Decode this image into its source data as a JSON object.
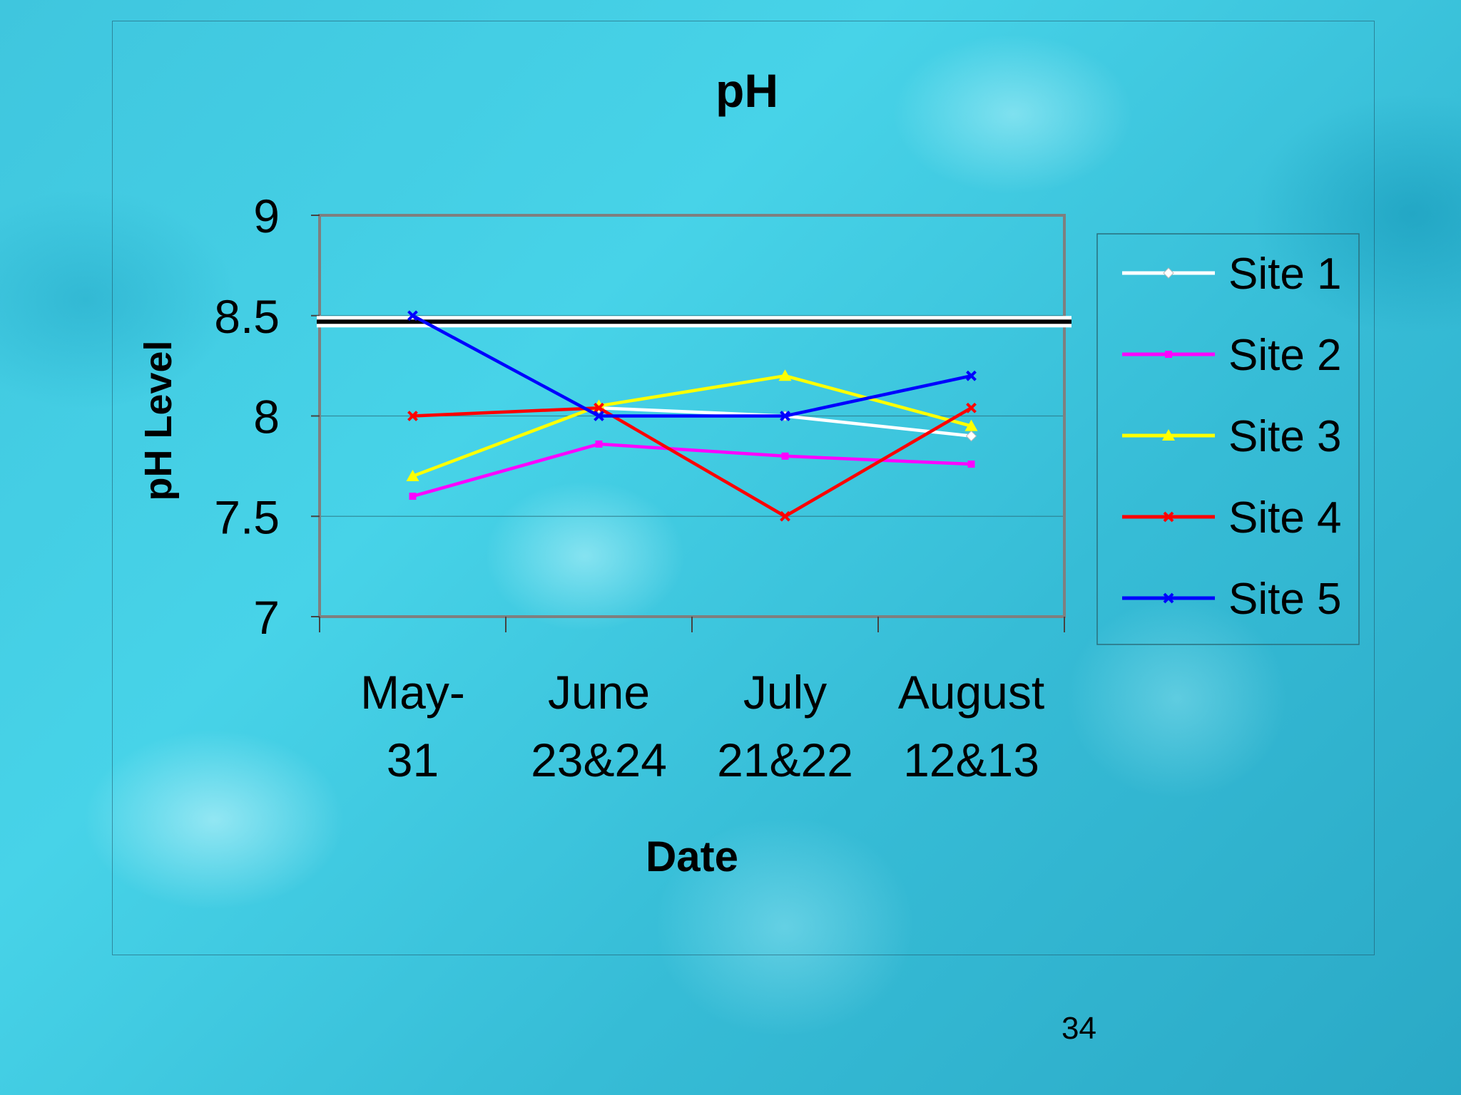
{
  "chart_data": {
    "type": "line",
    "title": "pH",
    "xlabel": "Date",
    "ylabel": "pH Level",
    "categories": [
      [
        "May-",
        "31"
      ],
      [
        "June",
        "23&24"
      ],
      [
        "July",
        "21&22"
      ],
      [
        "August",
        "12&13"
      ]
    ],
    "ylim": [
      7,
      9
    ],
    "yticks": [
      "9",
      "8.5",
      "8",
      "7.5",
      "7"
    ],
    "ytick_values": [
      9,
      8.5,
      8,
      7.5,
      7
    ],
    "grid": "horizontal",
    "legend_position": "right",
    "reference_line": {
      "value": 8.47,
      "color": "#000000"
    },
    "series": [
      {
        "name": "Site 1",
        "color": "#ffffff",
        "marker": "diamond",
        "values": [
          null,
          8.04,
          8.0,
          7.9
        ]
      },
      {
        "name": "Site 2",
        "color": "#ff00ff",
        "marker": "square",
        "values": [
          7.6,
          7.86,
          7.8,
          7.76
        ]
      },
      {
        "name": "Site 3",
        "color": "#ffff00",
        "marker": "triangle",
        "values": [
          7.7,
          8.05,
          8.2,
          7.95
        ]
      },
      {
        "name": "Site 4",
        "color": "#ff0000",
        "marker": "x",
        "values": [
          8.0,
          8.04,
          7.5,
          8.04
        ]
      },
      {
        "name": "Site 5",
        "color": "#0000ff",
        "marker": "x",
        "values": [
          8.5,
          8.0,
          8.0,
          8.2
        ]
      }
    ]
  },
  "page": {
    "number": "34"
  }
}
